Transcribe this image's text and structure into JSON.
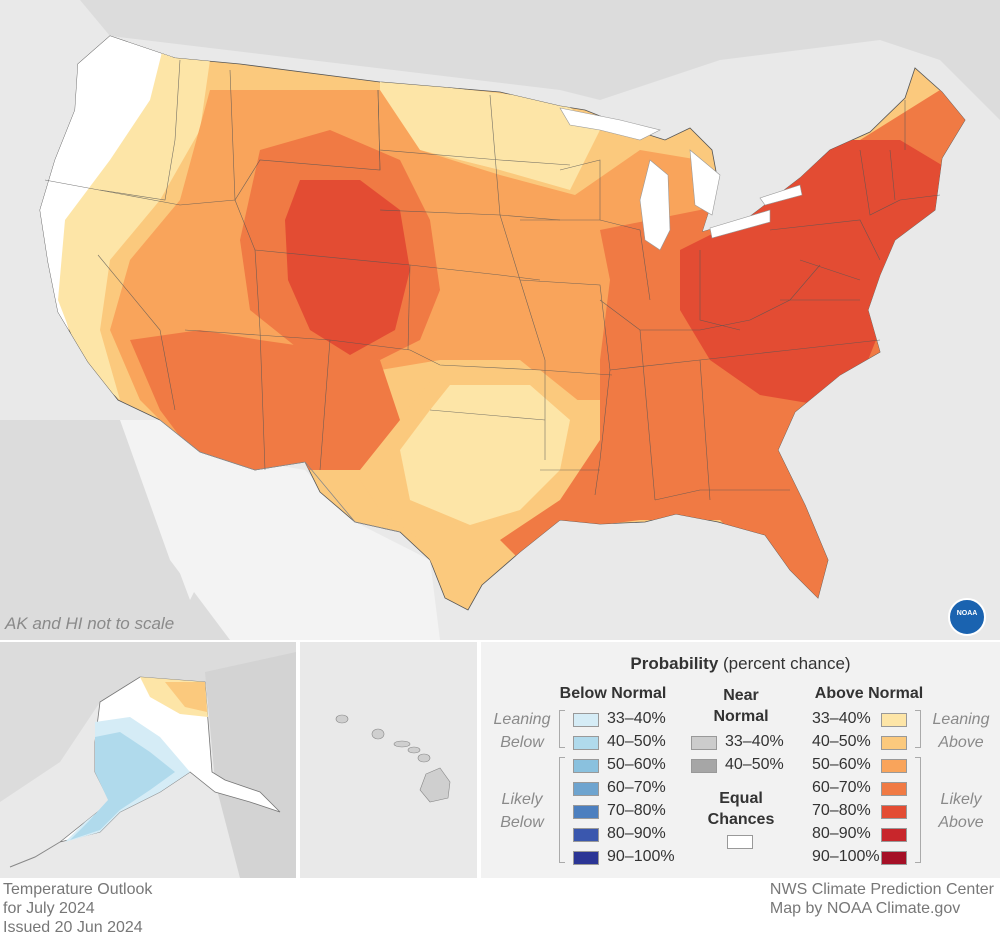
{
  "map": {
    "note": "AK and HI not to scale",
    "noaa_logo": "NOAA"
  },
  "legend": {
    "title_bold": "Probability",
    "title_rest": " (percent chance)",
    "below": {
      "heading": "Below Normal",
      "leaning_label": [
        "Leaning",
        "Below"
      ],
      "likely_label": [
        "Likely",
        "Below"
      ],
      "items": [
        {
          "label": "33–40%",
          "color": "#d5ecf6"
        },
        {
          "label": "40–50%",
          "color": "#b0daec"
        },
        {
          "label": "50–60%",
          "color": "#8ac1de"
        },
        {
          "label": "60–70%",
          "color": "#6ea4cf"
        },
        {
          "label": "70–80%",
          "color": "#4c7fbf"
        },
        {
          "label": "80–90%",
          "color": "#3a57ae"
        },
        {
          "label": "90–100%",
          "color": "#2b3595"
        }
      ]
    },
    "near": {
      "heading": [
        "Near",
        "Normal"
      ],
      "items": [
        {
          "label": "33–40%",
          "color": "#cccccc"
        },
        {
          "label": "40–50%",
          "color": "#a6a6a6"
        }
      ],
      "equal_heading": [
        "Equal",
        "Chances"
      ],
      "equal_color": "#ffffff"
    },
    "above": {
      "heading": "Above Normal",
      "leaning_label": [
        "Leaning",
        "Above"
      ],
      "likely_label": [
        "Likely",
        "Above"
      ],
      "items": [
        {
          "label": "33–40%",
          "color": "#fde5a7"
        },
        {
          "label": "40–50%",
          "color": "#fbc97d"
        },
        {
          "label": "50–60%",
          "color": "#f9a45b"
        },
        {
          "label": "60–70%",
          "color": "#f07a44"
        },
        {
          "label": "70–80%",
          "color": "#e34c33"
        },
        {
          "label": "80–90%",
          "color": "#c8262b"
        },
        {
          "label": "90–100%",
          "color": "#a50f26"
        }
      ]
    }
  },
  "footer": {
    "left": [
      "Temperature Outlook",
      "for July 2024",
      "Issued 20 Jun 2024"
    ],
    "right": [
      "NWS Climate Prediction Center",
      "Map by NOAA Climate.gov"
    ]
  }
}
